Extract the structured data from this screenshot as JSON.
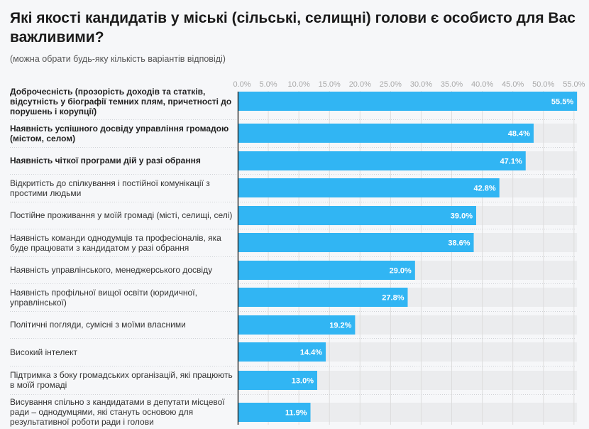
{
  "header": {
    "title": "Які якості кандидатів у міські (сільські, селищні) голови є особисто для Вас важливими?",
    "subtitle": "(можна обрати будь-яку кількість варіантів відповіді)"
  },
  "colors": {
    "bar": "#31b5f3",
    "track": "#ebecee",
    "grid": "#dddddd",
    "axis": "#333333",
    "background": "#f6f7f9"
  },
  "chart_data": {
    "type": "bar",
    "orientation": "horizontal",
    "title": "Які якості кандидатів у міські (сільські, селищні) голови є особисто для Вас важливими?",
    "subtitle": "(можна обрати будь-яку кількість варіантів відповіді)",
    "xlabel": "",
    "ylabel": "",
    "xlim": [
      0,
      55.5
    ],
    "grid": true,
    "legend": "none",
    "tick_labels": [
      "0.0%",
      "5.0%",
      "10.0%",
      "15.0%",
      "20.0%",
      "25.0%",
      "30.0%",
      "35.0%",
      "40.0%",
      "45.0%",
      "50.0%",
      "55.0%"
    ],
    "ticks": [
      0,
      5,
      10,
      15,
      20,
      25,
      30,
      35,
      40,
      45,
      50,
      55
    ],
    "categories": [
      "Доброчесність (прозорість доходів та статків, відсутність у біографії темних плям, причетності до порушень і корупції)",
      "Наявність успішного досвіду управління громадою (містом, селом)",
      "Наявність чіткої програми дій у разі обрання",
      "Відкритість до спілкування і постійної комунікації з простими людьми",
      "Постійне проживання у моїй громаді (місті, селищі, селі)",
      "Наявність команди однодумців та професіоналів, яка буде працювати з кандидатом у разі обрання",
      "Наявність управлінського, менеджерського досвіду",
      "Наявність профільної вищої освіти (юридичної, управлінської)",
      "Політичні погляди, сумісні з моїми власними",
      "Високий інтелект",
      "Підтримка з боку громадських організацій, які працюють в моїй громаді",
      "Висування спільно з кандидатами в депутати місцевої ради – однодумцями, які стануть основою для результативної роботи ради і голови"
    ],
    "values": [
      55.5,
      48.4,
      47.1,
      42.8,
      39.0,
      38.6,
      29.0,
      27.8,
      19.2,
      14.4,
      13.0,
      11.9
    ],
    "value_labels": [
      "55.5%",
      "48.4%",
      "47.1%",
      "42.8%",
      "39.0%",
      "38.6%",
      "29.0%",
      "27.8%",
      "19.2%",
      "14.4%",
      "13.0%",
      "11.9%"
    ],
    "bold_categories": [
      true,
      true,
      true,
      false,
      false,
      false,
      false,
      false,
      false,
      false,
      false,
      false
    ]
  }
}
